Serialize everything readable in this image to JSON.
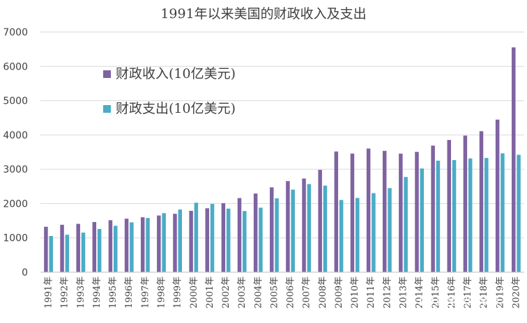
{
  "chart_data": {
    "type": "bar",
    "title": "1991年以来美国的财政收入及支出",
    "categories": [
      "1991年",
      "1992年",
      "1993年",
      "1994年",
      "1995年",
      "1996年",
      "1997年",
      "1998年",
      "1999年",
      "2000年",
      "2001年",
      "2002年",
      "2003年",
      "2004年",
      "2005年",
      "2006年",
      "2007年",
      "2008年",
      "2009年",
      "2010年",
      "2011年",
      "2012年",
      "2013年",
      "2014年",
      "2015年",
      "2016年",
      "2017年",
      "2018年",
      "2019年",
      "2020年"
    ],
    "series": [
      {
        "name": "财政收入(10亿美元)",
        "color": "#7f63a1",
        "values": [
          1324,
          1382,
          1409,
          1462,
          1515,
          1560,
          1601,
          1652,
          1702,
          1789,
          1863,
          2011,
          2160,
          2293,
          2472,
          2655,
          2729,
          2983,
          3518,
          3457,
          3603,
          3537,
          3455,
          3506,
          3689,
          3854,
          3982,
          4109,
          4447,
          6552
        ]
      },
      {
        "name": "财政支出(10亿美元)",
        "color": "#4bacc6",
        "values": [
          1055,
          1091,
          1154,
          1259,
          1352,
          1453,
          1579,
          1721,
          1827,
          2025,
          1991,
          1853,
          1782,
          1880,
          2154,
          2407,
          2568,
          2524,
          2105,
          2163,
          2303,
          2450,
          2775,
          3022,
          3250,
          3268,
          3316,
          3330,
          3464,
          3421
        ]
      }
    ],
    "ylim": [
      0,
      7000
    ],
    "yticks": [
      0,
      1000,
      2000,
      3000,
      4000,
      5000,
      6000,
      7000
    ],
    "grid": true,
    "legend_position": "upper-left inside plot",
    "watermark": "财主家的余粮"
  }
}
